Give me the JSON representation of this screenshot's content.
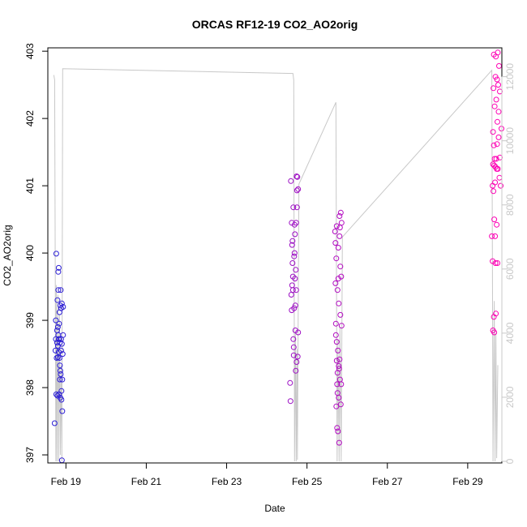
{
  "chart_data": {
    "type": "scatter",
    "title": "ORCAS RF12-19 CO2_AO2orig",
    "xlabel": "Date",
    "ylabel": "CO2_AO2orig",
    "xlim": [
      18.55,
      29.85
    ],
    "ylim": [
      396.88,
      403.05
    ],
    "y2lim": [
      -50,
      12900
    ],
    "x_ticks": [
      19,
      21,
      23,
      25,
      27,
      29
    ],
    "x_tick_labels": [
      "Feb 19",
      "Feb 21",
      "Feb 23",
      "Feb 25",
      "Feb 27",
      "Feb 29"
    ],
    "y_ticks": [
      397,
      398,
      399,
      400,
      401,
      402,
      403
    ],
    "y_tick_labels": [
      "397",
      "398",
      "399",
      "400",
      "401",
      "402",
      "403"
    ],
    "y2_ticks": [
      0,
      2000,
      4000,
      6000,
      8000,
      10000,
      12000
    ],
    "y2_tick_labels": [
      "0",
      "2000",
      "4000",
      "6000",
      "8000",
      "10000",
      "12000"
    ],
    "grid": false,
    "colors": {
      "points_start": "#2a1fd6",
      "points_end": "#ff00b4",
      "altitude": "#c8c8c8",
      "axes": "#000000"
    },
    "series": [
      {
        "values": [
          [
            18.72,
            397.47
          ],
          [
            18.74,
            398.55
          ],
          [
            18.75,
            399.0
          ],
          [
            18.75,
            398.72
          ],
          [
            18.76,
            399.99
          ],
          [
            18.76,
            397.9
          ],
          [
            18.77,
            398.44
          ],
          [
            18.78,
            398.85
          ],
          [
            18.78,
            398.67
          ],
          [
            18.79,
            399.3
          ],
          [
            18.79,
            397.88
          ],
          [
            18.8,
            398.45
          ],
          [
            18.8,
            398.9
          ],
          [
            18.8,
            398.62
          ],
          [
            18.81,
            398.78
          ],
          [
            18.81,
            399.72
          ],
          [
            18.81,
            399.45
          ],
          [
            18.82,
            398.53
          ],
          [
            18.82,
            398.72
          ],
          [
            18.82,
            399.78
          ],
          [
            18.83,
            397.9
          ],
          [
            18.83,
            398.95
          ],
          [
            18.83,
            398.72
          ],
          [
            18.84,
            398.44
          ],
          [
            18.84,
            399.12
          ],
          [
            18.85,
            398.67
          ],
          [
            18.85,
            398.12
          ],
          [
            18.85,
            398.33
          ],
          [
            18.86,
            399.22
          ],
          [
            18.86,
            398.25
          ],
          [
            18.86,
            397.85
          ],
          [
            18.87,
            399.45
          ],
          [
            18.87,
            398.2
          ],
          [
            18.88,
            398.72
          ],
          [
            18.88,
            399.18
          ],
          [
            18.88,
            398.55
          ],
          [
            18.89,
            397.82
          ],
          [
            18.89,
            397.95
          ],
          [
            18.9,
            399.25
          ],
          [
            18.9,
            398.65
          ],
          [
            18.9,
            396.92
          ],
          [
            18.91,
            398.12
          ],
          [
            18.91,
            397.65
          ],
          [
            18.92,
            398.5
          ],
          [
            18.93,
            399.2
          ],
          [
            18.93,
            398.78
          ]
        ]
      },
      {
        "values": [
          [
            24.58,
            398.07
          ],
          [
            24.59,
            397.8
          ],
          [
            24.6,
            401.07
          ],
          [
            24.61,
            399.38
          ],
          [
            24.62,
            400.45
          ],
          [
            24.62,
            399.15
          ],
          [
            24.63,
            399.52
          ],
          [
            24.63,
            400.12
          ],
          [
            24.64,
            400.18
          ],
          [
            24.64,
            399.85
          ],
          [
            24.65,
            399.45
          ],
          [
            24.65,
            399.65
          ],
          [
            24.66,
            400.68
          ],
          [
            24.66,
            398.72
          ],
          [
            24.67,
            398.6
          ],
          [
            24.67,
            398.48
          ],
          [
            24.68,
            399.95
          ],
          [
            24.68,
            399.18
          ],
          [
            24.69,
            400.0
          ],
          [
            24.69,
            400.42
          ],
          [
            24.7,
            400.28
          ],
          [
            24.7,
            399.62
          ],
          [
            24.71,
            398.85
          ],
          [
            24.71,
            399.22
          ],
          [
            24.72,
            399.75
          ],
          [
            24.72,
            398.25
          ],
          [
            24.73,
            399.45
          ],
          [
            24.73,
            400.45
          ],
          [
            24.74,
            398.38
          ],
          [
            24.74,
            401.14
          ],
          [
            24.75,
            400.68
          ],
          [
            24.75,
            400.93
          ],
          [
            24.76,
            401.13
          ],
          [
            24.77,
            398.46
          ],
          [
            24.78,
            398.82
          ],
          [
            24.78,
            400.95
          ]
        ]
      },
      {
        "values": [
          [
            25.7,
            400.32
          ],
          [
            25.71,
            399.55
          ],
          [
            25.71,
            400.15
          ],
          [
            25.72,
            398.95
          ],
          [
            25.72,
            398.78
          ],
          [
            25.73,
            397.72
          ],
          [
            25.73,
            399.92
          ],
          [
            25.74,
            398.68
          ],
          [
            25.74,
            398.4
          ],
          [
            25.74,
            400.4
          ],
          [
            25.75,
            397.4
          ],
          [
            25.75,
            398.05
          ],
          [
            25.76,
            397.92
          ],
          [
            25.76,
            399.45
          ],
          [
            25.76,
            398.22
          ],
          [
            25.77,
            397.35
          ],
          [
            25.77,
            398.55
          ],
          [
            25.78,
            399.62
          ],
          [
            25.78,
            400.08
          ],
          [
            25.79,
            398.32
          ],
          [
            25.79,
            397.85
          ],
          [
            25.79,
            399.25
          ],
          [
            25.8,
            397.18
          ],
          [
            25.8,
            398.28
          ],
          [
            25.81,
            398.42
          ],
          [
            25.81,
            400.55
          ],
          [
            25.81,
            400.25
          ],
          [
            25.82,
            398.12
          ],
          [
            25.82,
            400.38
          ],
          [
            25.83,
            399.08
          ],
          [
            25.83,
            399.8
          ],
          [
            25.84,
            400.6
          ],
          [
            25.84,
            397.75
          ],
          [
            25.85,
            398.05
          ],
          [
            25.85,
            399.65
          ],
          [
            25.86,
            400.45
          ],
          [
            25.86,
            398.92
          ]
        ]
      },
      {
        "values": [
          [
            29.6,
            400.25
          ],
          [
            29.62,
            401.0
          ],
          [
            29.62,
            399.88
          ],
          [
            29.63,
            401.32
          ],
          [
            29.63,
            398.85
          ],
          [
            29.63,
            401.8
          ],
          [
            29.64,
            400.92
          ],
          [
            29.64,
            402.45
          ],
          [
            29.65,
            401.6
          ],
          [
            29.65,
            402.95
          ],
          [
            29.65,
            399.05
          ],
          [
            29.66,
            401.3
          ],
          [
            29.66,
            400.5
          ],
          [
            29.66,
            398.82
          ],
          [
            29.67,
            401.4
          ],
          [
            29.67,
            402.18
          ],
          [
            29.68,
            401.05
          ],
          [
            29.68,
            400.25
          ],
          [
            29.69,
            401.28
          ],
          [
            29.69,
            402.62
          ],
          [
            29.69,
            399.85
          ],
          [
            29.7,
            402.92
          ],
          [
            29.7,
            399.1
          ],
          [
            29.71,
            401.4
          ],
          [
            29.71,
            402.28
          ],
          [
            29.72,
            401.25
          ],
          [
            29.72,
            400.42
          ],
          [
            29.73,
            401.62
          ],
          [
            29.73,
            402.58
          ],
          [
            29.74,
            399.85
          ],
          [
            29.74,
            401.95
          ],
          [
            29.75,
            401.25
          ],
          [
            29.75,
            402.98
          ],
          [
            29.76,
            402.5
          ],
          [
            29.77,
            402.1
          ],
          [
            29.77,
            401.72
          ],
          [
            29.78,
            402.78
          ],
          [
            29.79,
            401.12
          ],
          [
            29.8,
            402.4
          ],
          [
            29.8,
            401.42
          ],
          [
            29.82,
            401.0
          ],
          [
            29.84,
            401.85
          ]
        ]
      }
    ],
    "altitude_trace": [
      [
        18.7,
        12050
      ],
      [
        18.72,
        11900
      ],
      [
        18.75,
        0
      ],
      [
        18.76,
        5500
      ],
      [
        18.78,
        0
      ],
      [
        18.8,
        5200
      ],
      [
        18.82,
        0
      ],
      [
        18.84,
        4600
      ],
      [
        18.86,
        200
      ],
      [
        18.88,
        3000
      ],
      [
        18.9,
        0
      ],
      [
        18.92,
        12250
      ],
      [
        24.65,
        12100
      ],
      [
        24.67,
        11900
      ],
      [
        24.69,
        0
      ],
      [
        24.71,
        4000
      ],
      [
        24.73,
        0
      ],
      [
        24.75,
        3500
      ],
      [
        24.76,
        50
      ],
      [
        24.8,
        8650
      ],
      [
        25.72,
        11200
      ],
      [
        25.75,
        0
      ],
      [
        25.77,
        3800
      ],
      [
        25.8,
        0
      ],
      [
        25.82,
        4200
      ],
      [
        25.85,
        0
      ],
      [
        25.88,
        7000
      ],
      [
        29.6,
        12200
      ],
      [
        29.63,
        0
      ],
      [
        29.66,
        5000
      ],
      [
        29.68,
        0
      ],
      [
        29.7,
        4000
      ],
      [
        29.72,
        100
      ],
      [
        29.75,
        3000
      ]
    ]
  }
}
